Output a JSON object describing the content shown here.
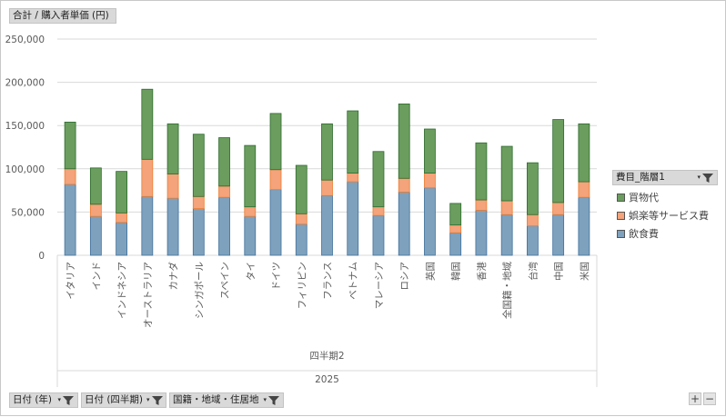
{
  "value_field": "合計 / 購入者単価 (円)",
  "legend": {
    "title": "費目_階層1",
    "items": [
      {
        "label": "買物代",
        "color": "#6a9d5e"
      },
      {
        "label": "娯楽等サービス費",
        "color": "#f4a37a"
      },
      {
        "label": "飲食費",
        "color": "#7ea1bd"
      }
    ]
  },
  "filters": [
    "日付 (年)",
    "日付 (四半期)",
    "国籍・地域・住居地"
  ],
  "zoom": {
    "plus": "+",
    "minus": "−"
  },
  "axis_groups": {
    "quarter": "四半期2",
    "year": "2025"
  },
  "colors": {
    "shopping": "#6a9d5e",
    "entertainment": "#f4a37a",
    "food": "#7ea1bd",
    "grid": "#d9d9d9"
  },
  "chart_data": {
    "type": "bar",
    "stacked": true,
    "categories": [
      "イタリア",
      "インド",
      "インドネシア",
      "オーストラリア",
      "カナダ",
      "シンガポール",
      "スペイン",
      "タイ",
      "ドイツ",
      "フィリピン",
      "フランス",
      "ベトナム",
      "マレーシア",
      "ロシア",
      "英国",
      "韓国",
      "香港",
      "全国籍・地域",
      "台湾",
      "中国",
      "米国"
    ],
    "series": [
      {
        "name": "飲食費",
        "values": [
          82000,
          45000,
          38000,
          68000,
          66000,
          54000,
          67000,
          45000,
          76000,
          36000,
          69000,
          85000,
          46000,
          73000,
          78000,
          26000,
          52000,
          47000,
          34000,
          47000,
          67000
        ]
      },
      {
        "name": "娯楽等サービス費",
        "values": [
          18000,
          14000,
          11000,
          43000,
          28000,
          14000,
          13000,
          11000,
          23000,
          12000,
          18000,
          10000,
          10000,
          16000,
          17000,
          9000,
          12000,
          16000,
          13000,
          14000,
          18000
        ]
      },
      {
        "name": "買物代",
        "values": [
          54000,
          42000,
          48000,
          81000,
          58000,
          72000,
          56000,
          71000,
          65000,
          56000,
          65000,
          72000,
          64000,
          86000,
          51000,
          25000,
          66000,
          63000,
          60000,
          96000,
          67000
        ]
      }
    ],
    "ylim": [
      0,
      250000
    ],
    "yticks": [
      0,
      50000,
      100000,
      150000,
      200000,
      250000
    ],
    "ytick_labels": [
      "0",
      "50,000",
      "100,000",
      "150,000",
      "200,000",
      "250,000"
    ],
    "grid": true,
    "legend_position": "right"
  }
}
